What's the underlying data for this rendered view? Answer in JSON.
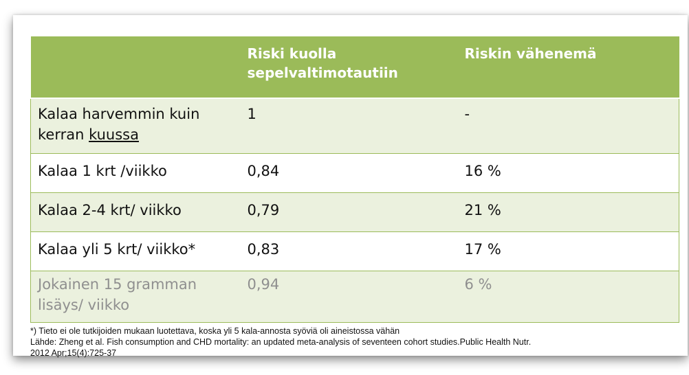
{
  "table": {
    "headers": [
      "",
      "Riski kuolla sepelvaltimotautiin",
      "Riskin vähenemä"
    ],
    "header_color": "#9bbb59",
    "alt_row_color": "#ebf1de",
    "rows": [
      {
        "label_prefix": "Kalaa harvemmin kuin kerran ",
        "label_underlined": "kuussa",
        "risk": "1",
        "reduction": "-"
      },
      {
        "label": "Kalaa 1 krt /viikko",
        "risk": "0,84",
        "reduction": "16 %"
      },
      {
        "label": "Kalaa 2-4 krt/ viikko",
        "risk": "0,79",
        "reduction": "21 %"
      },
      {
        "label": "Kalaa yli 5 krt/ viikko*",
        "risk": "0,83",
        "reduction": "17 %"
      },
      {
        "label": "Jokainen 15 gramman lisäys/ viikko",
        "risk": "0,94",
        "reduction": "6 %"
      }
    ]
  },
  "footnotes": {
    "note": "*) Tieto ei ole tutkijoiden mukaan luotettava, koska yli 5 kala-annosta syöviä oli aineistossa vähän",
    "source_line1": "Lähde: Zheng et al. Fish consumption and CHD mortality: an updated meta-analysis of seventeen cohort studies.Public Health Nutr.",
    "source_line2": "2012 Apr;15(4):725-37"
  }
}
